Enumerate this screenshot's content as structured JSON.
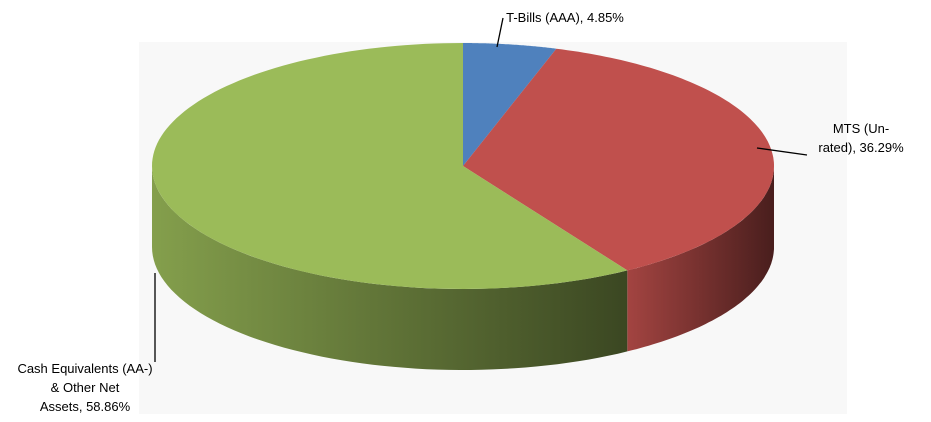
{
  "chart_data": {
    "type": "pie",
    "title": "",
    "three_d": true,
    "legend": "none",
    "slices": [
      {
        "label": "T-Bills (AAA), 4.85%",
        "category": "T-Bills (AAA)",
        "value": 4.85,
        "color": "#4F81BD",
        "label_lines": [
          "T-Bills (AAA), 4.85%"
        ]
      },
      {
        "label": "MTS (Un-rated), 36.29%",
        "category": "MTS (Un-rated)",
        "value": 36.29,
        "color": "#C0504D",
        "label_lines": [
          "MTS (Un-",
          "rated), 36.29%"
        ]
      },
      {
        "label": "Cash Equivalents (AA-) & Other Net Assets, 58.86%",
        "category": "Cash Equivalents (AA-) & Other Net Assets",
        "value": 58.86,
        "color": "#9BBB59",
        "label_lines": [
          "Cash Equivalents (AA-)",
          "& Other Net",
          "Assets, 58.86%"
        ]
      }
    ]
  }
}
